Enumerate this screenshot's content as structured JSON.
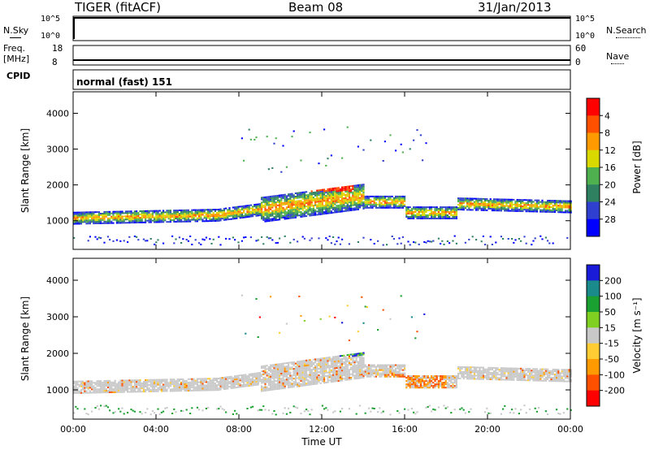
{
  "header": {
    "radar": "TIGER (fitACF)",
    "beam": "Beam 08",
    "date": "31/Jan/2013"
  },
  "top_panels": {
    "nsky_label": "N.Sky",
    "nsky_ticks": [
      "10^5",
      "10^0"
    ],
    "nsearch_label": "N.Search",
    "nsearch_ticks": [
      "10^5",
      "10^0"
    ],
    "freq_label": "Freq.",
    "freq_unit": "[MHz]",
    "freq_ticks": [
      "18",
      "8"
    ],
    "nave_label": "Nave",
    "nave_ticks": [
      "60",
      "0"
    ],
    "cpid_label": "CPID",
    "cpid_text": "normal (fast) 151"
  },
  "colors": {
    "power": [
      "#0000ff",
      "#2f3fd0",
      "#2f8060",
      "#4fb04f",
      "#d9d900",
      "#ff9a00",
      "#ff5000",
      "#ff0000"
    ],
    "velocity": [
      "#1a1ad9",
      "#1a8a8a",
      "#1aa030",
      "#7fd020",
      "#c8c8c8",
      "#ffcc33",
      "#ff9a00",
      "#ff5000",
      "#ff0000"
    ]
  },
  "chart_data": [
    {
      "type": "heatmap",
      "ylabel": "Slant Range [km]",
      "xlabel": "",
      "x_ticks": [
        "00:00",
        "04:00",
        "08:00",
        "12:00",
        "16:00",
        "20:00",
        "00:00"
      ],
      "y_ticks": [
        "1000",
        "2000",
        "3000",
        "4000"
      ],
      "ylim": [
        200,
        4600
      ],
      "colorbar_label": "Power [dB]",
      "colorbar_ticks": [
        "4",
        "8",
        "12",
        "16",
        "20",
        "24",
        "28"
      ]
    },
    {
      "type": "heatmap",
      "ylabel": "Slant Range [km]",
      "xlabel": "Time UT",
      "x_ticks": [
        "00:00",
        "04:00",
        "08:00",
        "12:00",
        "16:00",
        "20:00",
        "00:00"
      ],
      "y_ticks": [
        "1000",
        "2000",
        "3000",
        "4000"
      ],
      "ylim": [
        200,
        4600
      ],
      "colorbar_label": "Velocity [m s⁻¹]",
      "colorbar_ticks": [
        "200",
        "100",
        "50",
        "15",
        "-15",
        "-50",
        "-100",
        "-200"
      ]
    }
  ]
}
